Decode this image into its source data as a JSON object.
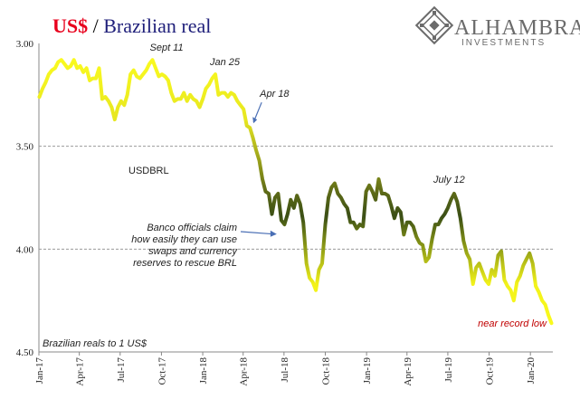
{
  "header": {
    "title_part1": "US$",
    "title_sep": " / ",
    "title_part2": "Brazilian real",
    "title_color1": "#e8001c",
    "title_color2": "#1f1f7a"
  },
  "logo": {
    "name": "ALHAMBRA",
    "sub": "INVESTMENTS",
    "icon": "alhambra-diamond-icon"
  },
  "chart_data": {
    "type": "line",
    "series": [
      {
        "name": "USDBRL",
        "color_top": "#ffff1f",
        "color_mid": "#3b4f16",
        "values": [
          [
            "2017-01-02",
            3.26
          ],
          [
            "2017-01-09",
            3.22
          ],
          [
            "2017-01-16",
            3.19
          ],
          [
            "2017-01-23",
            3.15
          ],
          [
            "2017-01-30",
            3.13
          ],
          [
            "2017-02-06",
            3.12
          ],
          [
            "2017-02-13",
            3.09
          ],
          [
            "2017-02-20",
            3.08
          ],
          [
            "2017-02-27",
            3.1
          ],
          [
            "2017-03-06",
            3.12
          ],
          [
            "2017-03-13",
            3.11
          ],
          [
            "2017-03-20",
            3.08
          ],
          [
            "2017-03-27",
            3.12
          ],
          [
            "2017-04-03",
            3.11
          ],
          [
            "2017-04-10",
            3.14
          ],
          [
            "2017-04-17",
            3.12
          ],
          [
            "2017-04-24",
            3.18
          ],
          [
            "2017-05-01",
            3.17
          ],
          [
            "2017-05-08",
            3.17
          ],
          [
            "2017-05-15",
            3.12
          ],
          [
            "2017-05-22",
            3.27
          ],
          [
            "2017-05-29",
            3.26
          ],
          [
            "2017-06-05",
            3.28
          ],
          [
            "2017-06-12",
            3.31
          ],
          [
            "2017-06-19",
            3.37
          ],
          [
            "2017-06-26",
            3.31
          ],
          [
            "2017-07-03",
            3.28
          ],
          [
            "2017-07-10",
            3.3
          ],
          [
            "2017-07-17",
            3.25
          ],
          [
            "2017-07-24",
            3.15
          ],
          [
            "2017-07-31",
            3.13
          ],
          [
            "2017-08-07",
            3.16
          ],
          [
            "2017-08-14",
            3.17
          ],
          [
            "2017-08-21",
            3.15
          ],
          [
            "2017-08-28",
            3.13
          ],
          [
            "2017-09-04",
            3.1
          ],
          [
            "2017-09-11",
            3.08
          ],
          [
            "2017-09-18",
            3.12
          ],
          [
            "2017-09-25",
            3.16
          ],
          [
            "2017-10-02",
            3.15
          ],
          [
            "2017-10-09",
            3.16
          ],
          [
            "2017-10-16",
            3.18
          ],
          [
            "2017-10-23",
            3.24
          ],
          [
            "2017-10-30",
            3.28
          ],
          [
            "2017-11-06",
            3.27
          ],
          [
            "2017-11-13",
            3.27
          ],
          [
            "2017-11-20",
            3.24
          ],
          [
            "2017-11-27",
            3.28
          ],
          [
            "2017-12-04",
            3.25
          ],
          [
            "2017-12-11",
            3.27
          ],
          [
            "2017-12-18",
            3.28
          ],
          [
            "2017-12-25",
            3.31
          ],
          [
            "2018-01-01",
            3.27
          ],
          [
            "2018-01-08",
            3.22
          ],
          [
            "2018-01-15",
            3.2
          ],
          [
            "2018-01-22",
            3.17
          ],
          [
            "2018-01-29",
            3.15
          ],
          [
            "2018-02-05",
            3.25
          ],
          [
            "2018-02-12",
            3.24
          ],
          [
            "2018-02-19",
            3.24
          ],
          [
            "2018-02-26",
            3.26
          ],
          [
            "2018-03-05",
            3.24
          ],
          [
            "2018-03-12",
            3.25
          ],
          [
            "2018-03-19",
            3.28
          ],
          [
            "2018-03-26",
            3.3
          ],
          [
            "2018-04-02",
            3.32
          ],
          [
            "2018-04-09",
            3.4
          ],
          [
            "2018-04-16",
            3.41
          ],
          [
            "2018-04-23",
            3.46
          ],
          [
            "2018-04-30",
            3.52
          ],
          [
            "2018-05-07",
            3.57
          ],
          [
            "2018-05-14",
            3.66
          ],
          [
            "2018-05-21",
            3.72
          ],
          [
            "2018-05-28",
            3.73
          ],
          [
            "2018-06-04",
            3.83
          ],
          [
            "2018-06-11",
            3.75
          ],
          [
            "2018-06-18",
            3.73
          ],
          [
            "2018-06-25",
            3.86
          ],
          [
            "2018-07-02",
            3.88
          ],
          [
            "2018-07-09",
            3.83
          ],
          [
            "2018-07-16",
            3.76
          ],
          [
            "2018-07-23",
            3.8
          ],
          [
            "2018-07-30",
            3.74
          ],
          [
            "2018-08-06",
            3.78
          ],
          [
            "2018-08-13",
            3.87
          ],
          [
            "2018-08-20",
            4.07
          ],
          [
            "2018-08-27",
            4.14
          ],
          [
            "2018-09-03",
            4.16
          ],
          [
            "2018-09-10",
            4.2
          ],
          [
            "2018-09-17",
            4.1
          ],
          [
            "2018-09-24",
            4.07
          ],
          [
            "2018-10-01",
            3.88
          ],
          [
            "2018-10-08",
            3.75
          ],
          [
            "2018-10-15",
            3.7
          ],
          [
            "2018-10-22",
            3.68
          ],
          [
            "2018-10-29",
            3.73
          ],
          [
            "2018-11-05",
            3.75
          ],
          [
            "2018-11-12",
            3.78
          ],
          [
            "2018-11-19",
            3.8
          ],
          [
            "2018-11-26",
            3.87
          ],
          [
            "2018-12-03",
            3.87
          ],
          [
            "2018-12-10",
            3.9
          ],
          [
            "2018-12-17",
            3.88
          ],
          [
            "2018-12-24",
            3.89
          ],
          [
            "2018-12-31",
            3.72
          ],
          [
            "2019-01-07",
            3.69
          ],
          [
            "2019-01-14",
            3.72
          ],
          [
            "2019-01-21",
            3.76
          ],
          [
            "2019-01-28",
            3.66
          ],
          [
            "2019-02-04",
            3.73
          ],
          [
            "2019-02-11",
            3.73
          ],
          [
            "2019-02-18",
            3.74
          ],
          [
            "2019-02-25",
            3.79
          ],
          [
            "2019-03-04",
            3.85
          ],
          [
            "2019-03-11",
            3.8
          ],
          [
            "2019-03-18",
            3.82
          ],
          [
            "2019-03-25",
            3.93
          ],
          [
            "2019-04-01",
            3.87
          ],
          [
            "2019-04-08",
            3.87
          ],
          [
            "2019-04-15",
            3.89
          ],
          [
            "2019-04-22",
            3.94
          ],
          [
            "2019-04-29",
            3.97
          ],
          [
            "2019-05-06",
            3.98
          ],
          [
            "2019-05-13",
            4.06
          ],
          [
            "2019-05-20",
            4.04
          ],
          [
            "2019-05-27",
            3.95
          ],
          [
            "2019-06-03",
            3.88
          ],
          [
            "2019-06-10",
            3.88
          ],
          [
            "2019-06-17",
            3.85
          ],
          [
            "2019-06-24",
            3.83
          ],
          [
            "2019-07-01",
            3.8
          ],
          [
            "2019-07-08",
            3.76
          ],
          [
            "2019-07-15",
            3.73
          ],
          [
            "2019-07-22",
            3.77
          ],
          [
            "2019-07-29",
            3.85
          ],
          [
            "2019-08-05",
            3.96
          ],
          [
            "2019-08-12",
            4.02
          ],
          [
            "2019-08-19",
            4.05
          ],
          [
            "2019-08-26",
            4.17
          ],
          [
            "2019-09-02",
            4.09
          ],
          [
            "2019-09-09",
            4.07
          ],
          [
            "2019-09-16",
            4.11
          ],
          [
            "2019-09-23",
            4.15
          ],
          [
            "2019-09-30",
            4.17
          ],
          [
            "2019-10-07",
            4.1
          ],
          [
            "2019-10-14",
            4.13
          ],
          [
            "2019-10-21",
            4.03
          ],
          [
            "2019-10-28",
            4.01
          ],
          [
            "2019-11-04",
            4.15
          ],
          [
            "2019-11-11",
            4.18
          ],
          [
            "2019-11-18",
            4.2
          ],
          [
            "2019-11-25",
            4.25
          ],
          [
            "2019-12-02",
            4.16
          ],
          [
            "2019-12-09",
            4.13
          ],
          [
            "2019-12-16",
            4.08
          ],
          [
            "2019-12-23",
            4.05
          ],
          [
            "2019-12-30",
            4.02
          ],
          [
            "2020-01-06",
            4.07
          ],
          [
            "2020-01-13",
            4.18
          ],
          [
            "2020-01-20",
            4.21
          ],
          [
            "2020-01-27",
            4.25
          ],
          [
            "2020-02-03",
            4.27
          ],
          [
            "2020-02-10",
            4.32
          ],
          [
            "2020-02-17",
            4.36
          ]
        ]
      }
    ],
    "ylim": [
      3.0,
      4.5
    ],
    "y_inverted": true,
    "yticks": [
      "3.00",
      "3.50",
      "4.00",
      "4.50"
    ],
    "ytick_values": [
      3.0,
      3.5,
      4.0,
      4.5
    ],
    "gridlines": "horizontal dashed",
    "xlim": [
      "2017-01-01",
      "2020-02-20"
    ],
    "xtick_labels": [
      "Jan-17",
      "Apr-17",
      "Jul-17",
      "Oct-17",
      "Jan-18",
      "Apr-18",
      "Jul-18",
      "Oct-18",
      "Jan-19",
      "Apr-19",
      "Jul-19",
      "Oct-19",
      "Jan-20"
    ],
    "xtick_dates": [
      "2017-01-01",
      "2017-04-01",
      "2017-07-01",
      "2017-10-01",
      "2018-01-01",
      "2018-04-01",
      "2018-07-01",
      "2018-10-01",
      "2019-01-01",
      "2019-04-01",
      "2019-07-01",
      "2019-10-01",
      "2020-01-01"
    ],
    "legend": {
      "position": "left-middle",
      "label": "USDBRL"
    },
    "annotations": [
      {
        "text": "Sept 11",
        "date": "2017-09-11",
        "value": 3.08
      },
      {
        "text": "Jan 25",
        "date": "2018-01-25",
        "value": 3.15
      },
      {
        "text": "Apr 18",
        "date": "2018-04-18",
        "value": 3.41
      },
      {
        "text": "July 12",
        "date": "2019-07-12",
        "value": 3.73
      },
      {
        "text": "near record low",
        "date": "2020-02-17",
        "value": 4.36
      },
      {
        "text": "Brazilian reals to 1 US$"
      }
    ],
    "callout": {
      "lines": [
        "Banco officials claim",
        "how easily they can use",
        "swaps and currency",
        "reserves to rescue BRL"
      ],
      "arrow_from": {
        "date": "2018-05-25",
        "value": 3.88
      },
      "arrow_to": {
        "date": "2018-07-05",
        "value": 3.94
      }
    }
  }
}
